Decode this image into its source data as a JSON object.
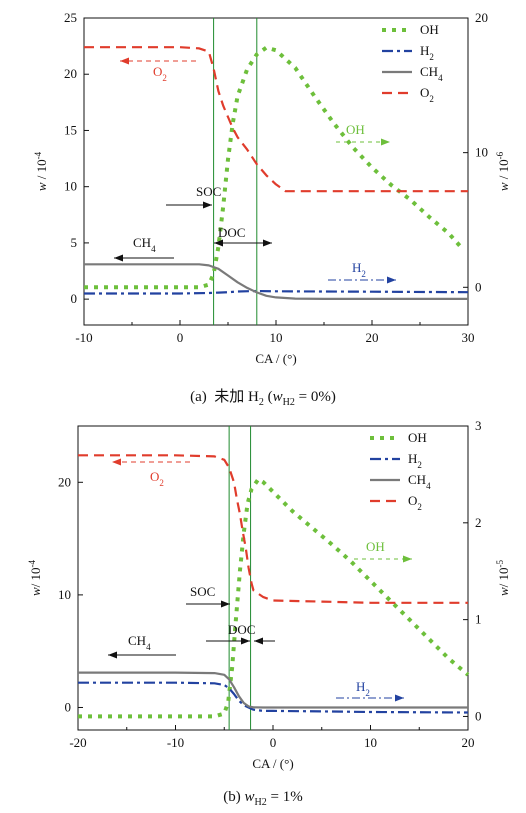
{
  "chart_data": [
    {
      "type": "line",
      "caption": {
        "prefix": "(a)",
        "text_a": "未加 H",
        "sub_a": "2",
        "text_b": " (",
        "var": "w",
        "var_sub": "H2",
        "text_c": " = 0%)"
      },
      "xlabel": "CA / (°)",
      "ylabel_left": {
        "var": "w",
        "text": " / 10",
        "exp": "-4"
      },
      "ylabel_right": {
        "var": "w",
        "text": " / 10",
        "exp": "-6"
      },
      "xlim": [
        -10,
        30
      ],
      "ylim_left": [
        -2.3,
        25
      ],
      "ylim_right": [
        -2.8,
        20
      ],
      "xticks": [
        -10,
        0,
        10,
        20,
        30
      ],
      "yticks_left": [
        0,
        5,
        10,
        15,
        20,
        25
      ],
      "yticks_right": [
        0,
        10,
        20
      ],
      "legend": [
        {
          "key": "OH",
          "label": "OH",
          "sub": ""
        },
        {
          "key": "H2",
          "label": "H",
          "sub": "2"
        },
        {
          "key": "CH4",
          "label": "CH",
          "sub": "4"
        },
        {
          "key": "O2",
          "label": "O",
          "sub": "2"
        }
      ],
      "legend_position": "top-right",
      "series": [
        {
          "key": "OH",
          "axis": "right",
          "color": "#6dbf3b",
          "x": [
            -10,
            0,
            2,
            3,
            3.5,
            4,
            4.5,
            5,
            5.5,
            6,
            7,
            8,
            9,
            10,
            12,
            14,
            16,
            18,
            20,
            22,
            24,
            26,
            28,
            29.5
          ],
          "y": [
            0,
            0,
            0,
            0.2,
            1.0,
            3.0,
            6.0,
            9.5,
            12.2,
            14.2,
            16.2,
            17.3,
            17.8,
            17.6,
            16.3,
            14.2,
            12.2,
            10.4,
            8.9,
            7.6,
            6.5,
            5.2,
            4.0,
            2.8
          ]
        },
        {
          "key": "H2",
          "axis": "left",
          "color": "#2242a0",
          "x": [
            -10,
            0,
            3,
            4,
            5,
            6,
            8,
            10,
            15,
            20,
            30
          ],
          "y": [
            0.5,
            0.5,
            0.55,
            0.58,
            0.62,
            0.68,
            0.72,
            0.7,
            0.68,
            0.66,
            0.62
          ]
        },
        {
          "key": "CH4",
          "axis": "left",
          "color": "#7a7a7a",
          "x": [
            -10,
            0,
            2,
            3,
            4,
            5,
            6,
            7,
            8,
            9,
            10,
            12,
            15,
            20,
            30
          ],
          "y": [
            3.1,
            3.1,
            3.1,
            3.0,
            2.7,
            2.1,
            1.5,
            1.0,
            0.6,
            0.3,
            0.15,
            0.05,
            0.02,
            0.02,
            0.02
          ]
        },
        {
          "key": "O2",
          "axis": "left",
          "color": "#e03c2c",
          "x": [
            -10,
            0,
            2,
            3,
            3.5,
            4,
            4.5,
            5,
            5.5,
            6,
            7,
            8,
            9,
            10,
            11,
            15,
            20,
            30
          ],
          "y": [
            22.4,
            22.4,
            22.3,
            22.0,
            20.5,
            18.5,
            17.2,
            16.2,
            15.2,
            14.4,
            13.3,
            12.0,
            11.0,
            10.2,
            9.6,
            9.6,
            9.6,
            9.6
          ]
        }
      ],
      "vlines": [
        3.5,
        8
      ],
      "annotations": [
        {
          "key": "soc",
          "text": "SOC",
          "sub": ""
        },
        {
          "key": "doc",
          "text": "DOC",
          "sub": ""
        },
        {
          "key": "lab_ch4",
          "text": "CH",
          "sub": "4"
        },
        {
          "key": "lab_o2",
          "text": "O",
          "sub": "2"
        },
        {
          "key": "lab_oh",
          "text": "OH",
          "sub": ""
        },
        {
          "key": "lab_h2",
          "text": "H",
          "sub": "2"
        }
      ]
    },
    {
      "type": "line",
      "caption": {
        "prefix": "(b)",
        "text_a": "",
        "sub_a": "",
        "text_b": " ",
        "var": "w",
        "var_sub": "H2",
        "text_c": " = 1%"
      },
      "xlabel": "CA / (°)",
      "ylabel_left": {
        "var": "w",
        "text": "/ 10",
        "exp": "-4"
      },
      "ylabel_right": {
        "var": "w",
        "text": "/ 10",
        "exp": "-5"
      },
      "xlim": [
        -20,
        20
      ],
      "ylim_left": [
        -2,
        25
      ],
      "ylim_right": [
        -0.14,
        3
      ],
      "xticks": [
        -20,
        -10,
        0,
        10,
        20
      ],
      "yticks_left": [
        0,
        10,
        20
      ],
      "yticks_right": [
        0,
        1,
        2,
        3
      ],
      "legend": [
        {
          "key": "OH",
          "label": "OH",
          "sub": ""
        },
        {
          "key": "H2",
          "label": "H",
          "sub": "2"
        },
        {
          "key": "CH4",
          "label": "CH",
          "sub": "4"
        },
        {
          "key": "O2",
          "label": "O",
          "sub": "2"
        }
      ],
      "legend_position": "top-right",
      "series": [
        {
          "key": "OH",
          "axis": "right",
          "color": "#6dbf3b",
          "x": [
            -20,
            -10,
            -6,
            -5,
            -4.6,
            -4.2,
            -3.8,
            -3.4,
            -3,
            -2.6,
            -2.2,
            -1.5,
            -1,
            0,
            2,
            4,
            6,
            8,
            10,
            12,
            14,
            16,
            18,
            20
          ],
          "y": [
            0,
            0,
            0,
            0.03,
            0.15,
            0.5,
            1.0,
            1.5,
            1.9,
            2.2,
            2.35,
            2.45,
            2.42,
            2.32,
            2.12,
            1.95,
            1.78,
            1.6,
            1.4,
            1.2,
            1.0,
            0.8,
            0.6,
            0.43
          ]
        },
        {
          "key": "H2",
          "axis": "left",
          "color": "#2242a0",
          "x": [
            -20,
            -10,
            -6,
            -5,
            -4.5,
            -4,
            -3.5,
            -3,
            -2.5,
            -2,
            -1,
            0,
            5,
            10,
            20
          ],
          "y": [
            2.2,
            2.2,
            2.15,
            2.0,
            1.7,
            1.2,
            0.6,
            0.2,
            0,
            -0.2,
            -0.3,
            -0.3,
            -0.35,
            -0.4,
            -0.45
          ]
        },
        {
          "key": "CH4",
          "axis": "left",
          "color": "#7a7a7a",
          "x": [
            -20,
            -10,
            -6,
            -5,
            -4.5,
            -4,
            -3.5,
            -3,
            -2.5,
            -2,
            -1,
            0,
            5,
            10,
            20
          ],
          "y": [
            3.1,
            3.1,
            3.05,
            2.9,
            2.5,
            1.8,
            1.0,
            0.4,
            0.1,
            0.02,
            0,
            0,
            0,
            0,
            0
          ]
        },
        {
          "key": "O2",
          "axis": "left",
          "color": "#e03c2c",
          "x": [
            -20,
            -10,
            -6,
            -5,
            -4.5,
            -4,
            -3.7,
            -3.4,
            -3.1,
            -2.8,
            -2.5,
            -2.2,
            -2,
            -1,
            0,
            5,
            10,
            20
          ],
          "y": [
            22.4,
            22.4,
            22.3,
            22.0,
            21.3,
            20.0,
            18.5,
            17.2,
            15.6,
            14.2,
            12.4,
            11.0,
            10.4,
            9.8,
            9.5,
            9.4,
            9.3,
            9.3
          ]
        }
      ],
      "vlines": [
        -4.5,
        -2.3
      ],
      "annotations": [
        {
          "key": "soc",
          "text": "SOC",
          "sub": ""
        },
        {
          "key": "doc",
          "text": "DOC",
          "sub": ""
        },
        {
          "key": "lab_ch4",
          "text": "CH",
          "sub": "4"
        },
        {
          "key": "lab_o2",
          "text": "O",
          "sub": "2"
        },
        {
          "key": "lab_oh",
          "text": "OH",
          "sub": ""
        },
        {
          "key": "lab_h2",
          "text": "H",
          "sub": "2"
        }
      ]
    }
  ]
}
